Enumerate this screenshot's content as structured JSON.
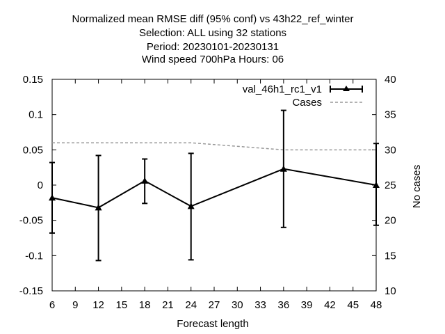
{
  "chart_data": {
    "type": "line",
    "title_lines": [
      "Normalized mean RMSE diff (95% conf) vs 43h22_ref_winter",
      "Selection: ALL using    32 stations",
      "Period: 20230101-20230131",
      "Wind speed 700hPa   Hours:  06"
    ],
    "xlabel": "Forecast length",
    "ylabel": "",
    "y2label": "No cases",
    "xlim": [
      6,
      48
    ],
    "ylim": [
      -0.15,
      0.15
    ],
    "y2lim": [
      10,
      40
    ],
    "x_ticks": [
      "6",
      "9",
      "12",
      "15",
      "18",
      "21",
      "24",
      "27",
      "30",
      "33",
      "36",
      "39",
      "42",
      "45",
      "48"
    ],
    "y_ticks": [
      "0.15",
      "0.1",
      "0.05",
      "0",
      "-0.05",
      "-0.1",
      "-0.15"
    ],
    "y2_ticks": [
      "40",
      "35",
      "30",
      "25",
      "20",
      "15",
      "10"
    ],
    "grid": false,
    "legend_position": "top-right",
    "series": [
      {
        "name": "val_46h1_rc1_v1",
        "axis": "left",
        "color": "#000000",
        "style": "solid-errorbars-triangles",
        "x": [
          6,
          12,
          18,
          24,
          36,
          48
        ],
        "y": [
          -0.018,
          -0.032,
          0.006,
          -0.03,
          0.023,
          0.0
        ],
        "err_low": [
          -0.068,
          -0.107,
          -0.026,
          -0.106,
          -0.06,
          -0.057
        ],
        "err_high": [
          0.032,
          0.042,
          0.037,
          0.045,
          0.106,
          0.059
        ]
      },
      {
        "name": "Cases",
        "axis": "right",
        "color": "#999999",
        "style": "dashed",
        "x": [
          6,
          12,
          18,
          24,
          36,
          48
        ],
        "y": [
          31,
          31,
          31,
          31,
          30,
          30
        ]
      }
    ]
  }
}
